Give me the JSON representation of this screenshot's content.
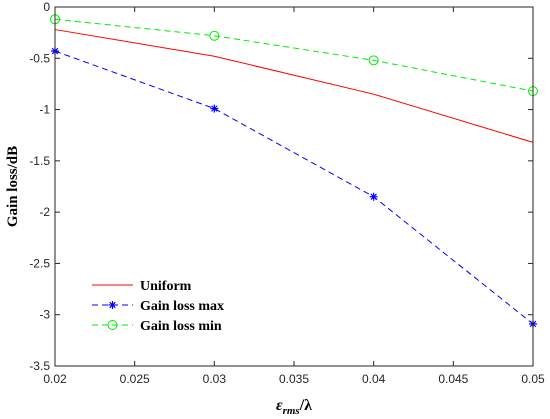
{
  "chart_data": {
    "type": "line",
    "x": [
      0.02,
      0.03,
      0.04,
      0.05
    ],
    "xlim": [
      0.02,
      0.05
    ],
    "ylim": [
      -3.5,
      0
    ],
    "xticks": [
      "0.02",
      "0.025",
      "0.03",
      "0.035",
      "0.04",
      "0.045",
      "0.05"
    ],
    "xtick_values": [
      0.02,
      0.025,
      0.03,
      0.035,
      0.04,
      0.045,
      0.05
    ],
    "yticks": [
      "0",
      "-0.5",
      "-1",
      "-1.5",
      "-2",
      "-2.5",
      "-3",
      "-3.5"
    ],
    "ytick_values": [
      0,
      -0.5,
      -1,
      -1.5,
      -2,
      -2.5,
      -3,
      -3.5
    ],
    "ylabel": "Gain loss/dB",
    "xlabel_main": "ε",
    "xlabel_sub": "rms",
    "xlabel_tail": "/λ",
    "grid": false,
    "legend_position": "bottom-left",
    "series": [
      {
        "name": "Uniform",
        "values": [
          -0.22,
          -0.48,
          -0.85,
          -1.32
        ],
        "color": "#ff0000",
        "dash": "solid",
        "marker": "none"
      },
      {
        "name": "Gain loss max",
        "values": [
          -0.43,
          -0.99,
          -1.85,
          -3.09
        ],
        "color": "#0000ff",
        "dash": "dashed",
        "marker": "asterisk"
      },
      {
        "name": "Gain loss min",
        "values": [
          -0.12,
          -0.28,
          -0.52,
          -0.82
        ],
        "color": "#00ee00",
        "dash": "dashed",
        "marker": "circle"
      }
    ]
  }
}
